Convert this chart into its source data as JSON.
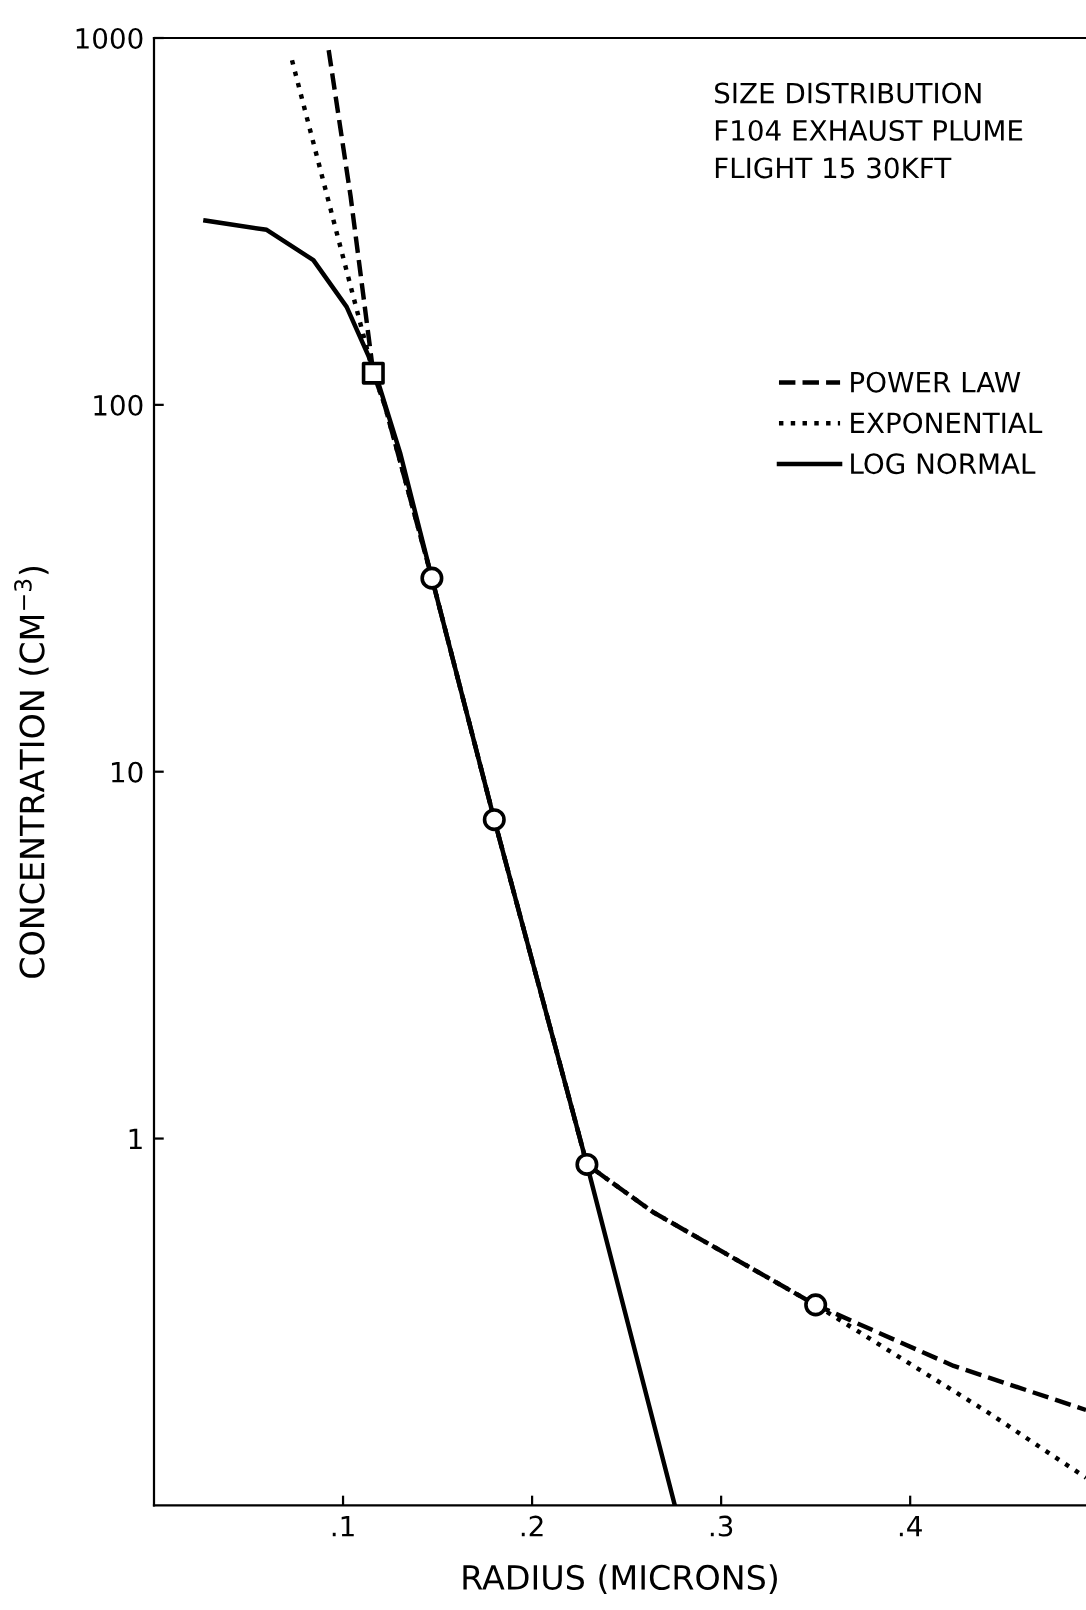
{
  "chart_data": {
    "type": "line",
    "xlabel": "RADIUS (MICRONS)",
    "ylabel": "CONCENTRATION (CM$^{−3}$)",
    "log": "y",
    "xlim": [
      0,
      0.493
    ],
    "ylim": [
      0.1,
      1000
    ],
    "xticks": [
      {
        "value": 0.1,
        "label": ".1"
      },
      {
        "value": 0.2,
        "label": ".2"
      },
      {
        "value": 0.3,
        "label": ".3"
      },
      {
        "value": 0.4,
        "label": ".4"
      }
    ],
    "yticks": [
      1,
      10,
      100,
      1000
    ],
    "grid": false,
    "legend": "top right",
    "annotations": [
      "SIZE DISTRIBUTION\nF104 EXHAUST PLUME\nFLIGHT 15 30KFT"
    ],
    "series": [
      {
        "name": "POWER LAW",
        "color": "#000000",
        "line_style": "dashed",
        "marker": "none",
        "x": [
          0.0924,
          0.104,
          0.116,
          0.122,
          0.147,
          0.18,
          0.229,
          0.264,
          0.35,
          0.423,
          0.493
        ],
        "values": [
          927,
          370,
          122,
          100,
          33.7,
          7.4,
          0.85,
          0.63,
          0.352,
          0.24,
          0.182
        ]
      },
      {
        "name": "EXPONENTIAL",
        "color": "#000000",
        "line_style": "dotted",
        "marker": "none",
        "x": [
          0.073,
          0.0949,
          0.116,
          0.122,
          0.147,
          0.18,
          0.229,
          0.264,
          0.35,
          0.4406,
          0.493
        ],
        "values": [
          870,
          319,
          122,
          100,
          33.7,
          7.4,
          0.85,
          0.63,
          0.352,
          0.18,
          0.119
        ]
      },
      {
        "name": "LOG NORMAL",
        "color": "#000000",
        "line_style": "solid",
        "marker": "none",
        "x": [
          0.0272,
          0.0596,
          0.0843,
          0.1019,
          0.116,
          0.1302,
          0.147,
          0.18,
          0.229,
          0.2755
        ],
        "values": [
          318,
          300,
          248,
          185,
          127,
          74,
          33.7,
          7.4,
          0.85,
          0.1
        ]
      },
      {
        "type": "scatter",
        "color": "#000000",
        "marker": "circle",
        "x": [
          0.147,
          0.18,
          0.229,
          0.35
        ],
        "values": [
          33.7,
          7.4,
          0.85,
          0.352
        ]
      },
      {
        "type": "scatter",
        "color": "#000000",
        "marker": "square",
        "x": [
          0.116
        ],
        "values": [
          122
        ]
      }
    ]
  }
}
